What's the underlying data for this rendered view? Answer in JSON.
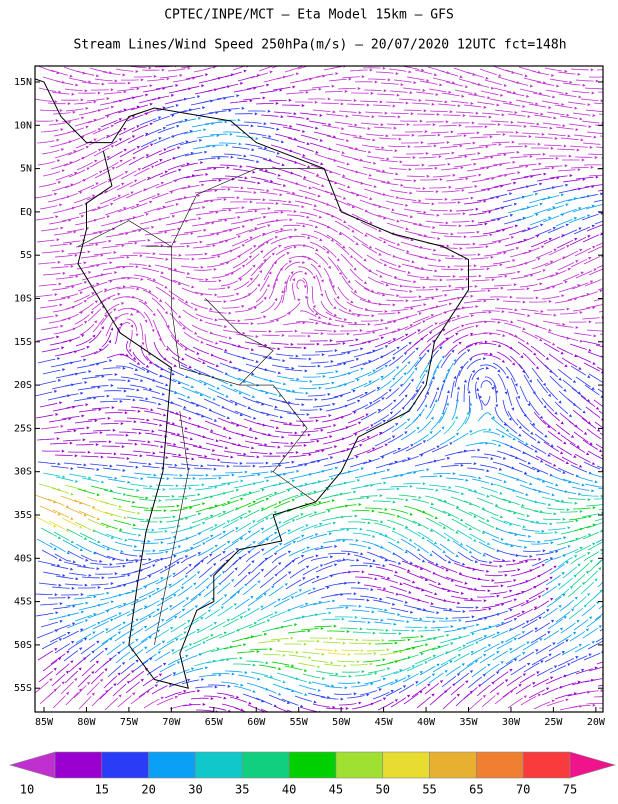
{
  "header": {
    "title": "CPTEC/INPE/MCT –  Eta Model 15km – GFS",
    "subtitle": "Stream Lines/Wind Speed 250hPa(m/s) – 20/07/2020 12UTC fct=148h"
  },
  "map": {
    "lat_labels": [
      "15N",
      "10N",
      "5N",
      "EQ",
      "5S",
      "10S",
      "15S",
      "20S",
      "25S",
      "30S",
      "35S",
      "40S",
      "45S",
      "50S",
      "55S"
    ],
    "lon_labels": [
      "85W",
      "80W",
      "75W",
      "70W",
      "65W",
      "60W",
      "55W",
      "50W",
      "45W",
      "40W",
      "35W",
      "30W",
      "25W",
      "20W"
    ]
  },
  "colorbar": {
    "labels": [
      10,
      15,
      20,
      30,
      35,
      40,
      45,
      50,
      55,
      65,
      70,
      75
    ],
    "colors": [
      "#9a00d0",
      "#2a3cf5",
      "#0aa0f5",
      "#10c8c8",
      "#10d080",
      "#00d000",
      "#a0e030",
      "#e8dc30",
      "#e8b030",
      "#f08030",
      "#f83c3c"
    ],
    "under_color": "#c030d0",
    "over_color": "#f0148c"
  }
}
